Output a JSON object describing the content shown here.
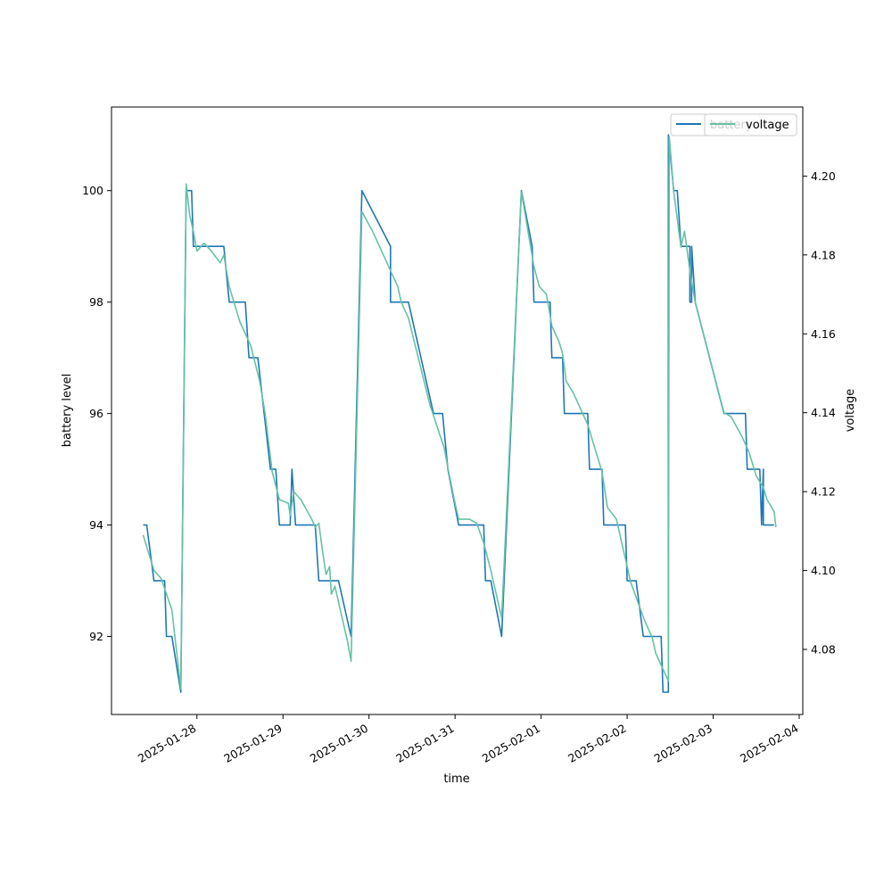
{
  "chart_data": {
    "type": "line",
    "xlabel": "time",
    "ylabel_left": "battery level",
    "ylabel_right": "voltage",
    "x_ticks": [
      "2025-01-28",
      "2025-01-29",
      "2025-01-30",
      "2025-01-31",
      "2025-02-01",
      "2025-02-02",
      "2025-02-03",
      "2025-02-04"
    ],
    "y_left_ticks": [
      92,
      94,
      96,
      98,
      100
    ],
    "y_right_ticks": [
      4.08,
      4.1,
      4.12,
      4.14,
      4.16,
      4.18,
      4.2
    ],
    "xlim": [
      "2025-01-27 00:10",
      "2025-02-04 01:00"
    ],
    "ylim_left": [
      90.6,
      101.5
    ],
    "ylim_right": [
      4.0635,
      4.2175
    ],
    "legend": {
      "placement": "upper-right",
      "entries": [
        "battery",
        "voltage"
      ]
    },
    "series": [
      {
        "name": "battery",
        "axis": "left",
        "color": "#1f77b4",
        "points": [
          [
            "2025-01-27 09:00",
            94
          ],
          [
            "2025-01-27 10:00",
            94
          ],
          [
            "2025-01-27 12:00",
            93
          ],
          [
            "2025-01-27 15:00",
            93
          ],
          [
            "2025-01-27 15:30",
            92
          ],
          [
            "2025-01-27 17:00",
            92
          ],
          [
            "2025-01-27 19:30",
            91
          ],
          [
            "2025-01-27 21:00",
            100
          ],
          [
            "2025-01-27 22:30",
            100
          ],
          [
            "2025-01-27 23:00",
            99
          ],
          [
            "2025-01-28 07:30",
            99
          ],
          [
            "2025-01-28 09:00",
            98
          ],
          [
            "2025-01-28 13:30",
            98
          ],
          [
            "2025-01-28 14:30",
            97
          ],
          [
            "2025-01-28 17:00",
            97
          ],
          [
            "2025-01-28 20:30",
            95
          ],
          [
            "2025-01-28 22:00",
            95
          ],
          [
            "2025-01-28 23:00",
            94
          ],
          [
            "2025-01-29 02:00",
            94
          ],
          [
            "2025-01-29 02:30",
            95
          ],
          [
            "2025-01-29 03:30",
            94
          ],
          [
            "2025-01-29 09:00",
            94
          ],
          [
            "2025-01-29 10:00",
            93
          ],
          [
            "2025-01-29 15:30",
            93
          ],
          [
            "2025-01-29 19:00",
            92
          ],
          [
            "2025-01-29 22:00",
            100
          ],
          [
            "2025-01-30 06:00",
            99
          ],
          [
            "2025-01-30 06:00",
            98
          ],
          [
            "2025-01-30 11:00",
            98
          ],
          [
            "2025-01-30 18:00",
            96
          ],
          [
            "2025-01-30 20:30",
            96
          ],
          [
            "2025-01-30 22:00",
            95
          ],
          [
            "2025-01-31 01:00",
            94
          ],
          [
            "2025-01-31 08:00",
            94
          ],
          [
            "2025-01-31 08:30",
            93
          ],
          [
            "2025-01-31 10:00",
            93
          ],
          [
            "2025-01-31 13:00",
            92
          ],
          [
            "2025-01-31 18:30",
            100
          ],
          [
            "2025-01-31 21:30",
            99
          ],
          [
            "2025-01-31 22:00",
            98
          ],
          [
            "2025-02-01 02:30",
            98
          ],
          [
            "2025-02-01 03:00",
            97
          ],
          [
            "2025-02-01 06:00",
            97
          ],
          [
            "2025-02-01 06:30",
            96
          ],
          [
            "2025-02-01 13:00",
            96
          ],
          [
            "2025-02-01 13:30",
            95
          ],
          [
            "2025-02-01 17:00",
            95
          ],
          [
            "2025-02-01 17:30",
            94
          ],
          [
            "2025-02-01 23:30",
            94
          ],
          [
            "2025-02-02 00:00",
            93
          ],
          [
            "2025-02-02 02:30",
            93
          ],
          [
            "2025-02-02 04:30",
            92
          ],
          [
            "2025-02-02 09:30",
            92
          ],
          [
            "2025-02-02 10:00",
            91
          ],
          [
            "2025-02-02 11:30",
            91
          ],
          [
            "2025-02-02 11:30",
            101
          ],
          [
            "2025-02-02 13:00",
            100
          ],
          [
            "2025-02-02 14:00",
            100
          ],
          [
            "2025-02-02 15:00",
            99
          ],
          [
            "2025-02-02 17:30",
            99
          ],
          [
            "2025-02-02 17:30",
            98
          ],
          [
            "2025-02-02 18:00",
            98
          ],
          [
            "2025-02-02 18:00",
            99
          ],
          [
            "2025-02-02 19:00",
            98
          ],
          [
            "2025-02-03 03:00",
            96
          ],
          [
            "2025-02-03 09:00",
            96
          ],
          [
            "2025-02-03 09:30",
            95
          ],
          [
            "2025-02-03 13:00",
            95
          ],
          [
            "2025-02-03 13:30",
            94
          ],
          [
            "2025-02-03 14:00",
            95
          ],
          [
            "2025-02-03 14:00",
            94
          ],
          [
            "2025-02-03 17:00",
            94
          ]
        ]
      },
      {
        "name": "voltage",
        "axis": "right",
        "color": "#66c2a5",
        "points": [
          [
            "2025-01-27 09:00",
            4.109
          ],
          [
            "2025-01-27 12:00",
            4.1
          ],
          [
            "2025-01-27 14:00",
            4.098
          ],
          [
            "2025-01-27 17:00",
            4.09
          ],
          [
            "2025-01-27 19:30",
            4.07
          ],
          [
            "2025-01-27 21:00",
            4.198
          ],
          [
            "2025-01-27 22:00",
            4.19
          ],
          [
            "2025-01-27 23:00",
            4.186
          ],
          [
            "2025-01-28 00:00",
            4.181
          ],
          [
            "2025-01-28 02:00",
            4.183
          ],
          [
            "2025-01-28 04:00",
            4.181
          ],
          [
            "2025-01-28 06:30",
            4.178
          ],
          [
            "2025-01-28 07:30",
            4.18
          ],
          [
            "2025-01-28 09:00",
            4.172
          ],
          [
            "2025-01-28 12:00",
            4.163
          ],
          [
            "2025-01-28 15:00",
            4.157
          ],
          [
            "2025-01-28 17:30",
            4.148
          ],
          [
            "2025-01-28 19:00",
            4.14
          ],
          [
            "2025-01-28 21:00",
            4.125
          ],
          [
            "2025-01-28 23:00",
            4.118
          ],
          [
            "2025-01-29 01:30",
            4.117
          ],
          [
            "2025-01-29 02:00",
            4.114
          ],
          [
            "2025-01-29 03:00",
            4.12
          ],
          [
            "2025-01-29 05:00",
            4.118
          ],
          [
            "2025-01-29 08:00",
            4.113
          ],
          [
            "2025-01-29 09:00",
            4.111
          ],
          [
            "2025-01-29 10:00",
            4.112
          ],
          [
            "2025-01-29 11:00",
            4.105
          ],
          [
            "2025-01-29 12:00",
            4.099
          ],
          [
            "2025-01-29 13:00",
            4.101
          ],
          [
            "2025-01-29 13:30",
            4.094
          ],
          [
            "2025-01-29 14:30",
            4.096
          ],
          [
            "2025-01-29 15:30",
            4.092
          ],
          [
            "2025-01-29 18:00",
            4.082
          ],
          [
            "2025-01-29 19:00",
            4.077
          ],
          [
            "2025-01-29 22:00",
            4.191
          ],
          [
            "2025-01-30 01:00",
            4.186
          ],
          [
            "2025-01-30 04:00",
            4.18
          ],
          [
            "2025-01-30 08:00",
            4.172
          ],
          [
            "2025-01-30 09:00",
            4.168
          ],
          [
            "2025-01-30 11:00",
            4.164
          ],
          [
            "2025-01-30 17:00",
            4.142
          ],
          [
            "2025-01-30 21:00",
            4.131
          ],
          [
            "2025-01-30 22:00",
            4.126
          ],
          [
            "2025-01-31 00:00",
            4.117
          ],
          [
            "2025-01-31 01:00",
            4.113
          ],
          [
            "2025-01-31 04:00",
            4.113
          ],
          [
            "2025-01-31 06:00",
            4.112
          ],
          [
            "2025-01-31 08:00",
            4.107
          ],
          [
            "2025-01-31 10:00",
            4.1
          ],
          [
            "2025-01-31 13:00",
            4.088
          ],
          [
            "2025-01-31 18:30",
            4.196
          ],
          [
            "2025-01-31 20:00",
            4.188
          ],
          [
            "2025-01-31 22:00",
            4.177
          ],
          [
            "2025-01-31 23:30",
            4.172
          ],
          [
            "2025-02-01 01:30",
            4.17
          ],
          [
            "2025-02-01 03:00",
            4.162
          ],
          [
            "2025-02-01 05:00",
            4.158
          ],
          [
            "2025-02-01 06:00",
            4.155
          ],
          [
            "2025-02-01 07:00",
            4.148
          ],
          [
            "2025-02-01 09:00",
            4.145
          ],
          [
            "2025-02-01 11:00",
            4.141
          ],
          [
            "2025-02-01 13:00",
            4.137
          ],
          [
            "2025-02-01 15:00",
            4.131
          ],
          [
            "2025-02-01 17:00",
            4.125
          ],
          [
            "2025-02-01 18:30",
            4.116
          ],
          [
            "2025-02-01 21:00",
            4.113
          ],
          [
            "2025-02-01 23:30",
            4.103
          ],
          [
            "2025-02-02 01:00",
            4.097
          ],
          [
            "2025-02-02 03:00",
            4.092
          ],
          [
            "2025-02-02 05:00",
            4.087
          ],
          [
            "2025-02-02 07:00",
            4.083
          ],
          [
            "2025-02-02 08:00",
            4.079
          ],
          [
            "2025-02-02 11:30",
            4.072
          ],
          [
            "2025-02-02 11:45",
            4.21
          ],
          [
            "2025-02-02 13:00",
            4.196
          ],
          [
            "2025-02-02 15:00",
            4.182
          ],
          [
            "2025-02-02 16:00",
            4.186
          ],
          [
            "2025-02-02 17:30",
            4.176
          ],
          [
            "2025-02-02 19:00",
            4.168
          ],
          [
            "2025-02-03 03:00",
            4.14
          ],
          [
            "2025-02-03 05:00",
            4.139
          ],
          [
            "2025-02-03 08:00",
            4.134
          ],
          [
            "2025-02-03 10:00",
            4.13
          ],
          [
            "2025-02-03 12:00",
            4.124
          ],
          [
            "2025-02-03 14:00",
            4.121
          ],
          [
            "2025-02-03 15:00",
            4.118
          ],
          [
            "2025-02-03 17:00",
            4.115
          ],
          [
            "2025-02-03 17:30",
            4.111
          ]
        ]
      }
    ]
  }
}
